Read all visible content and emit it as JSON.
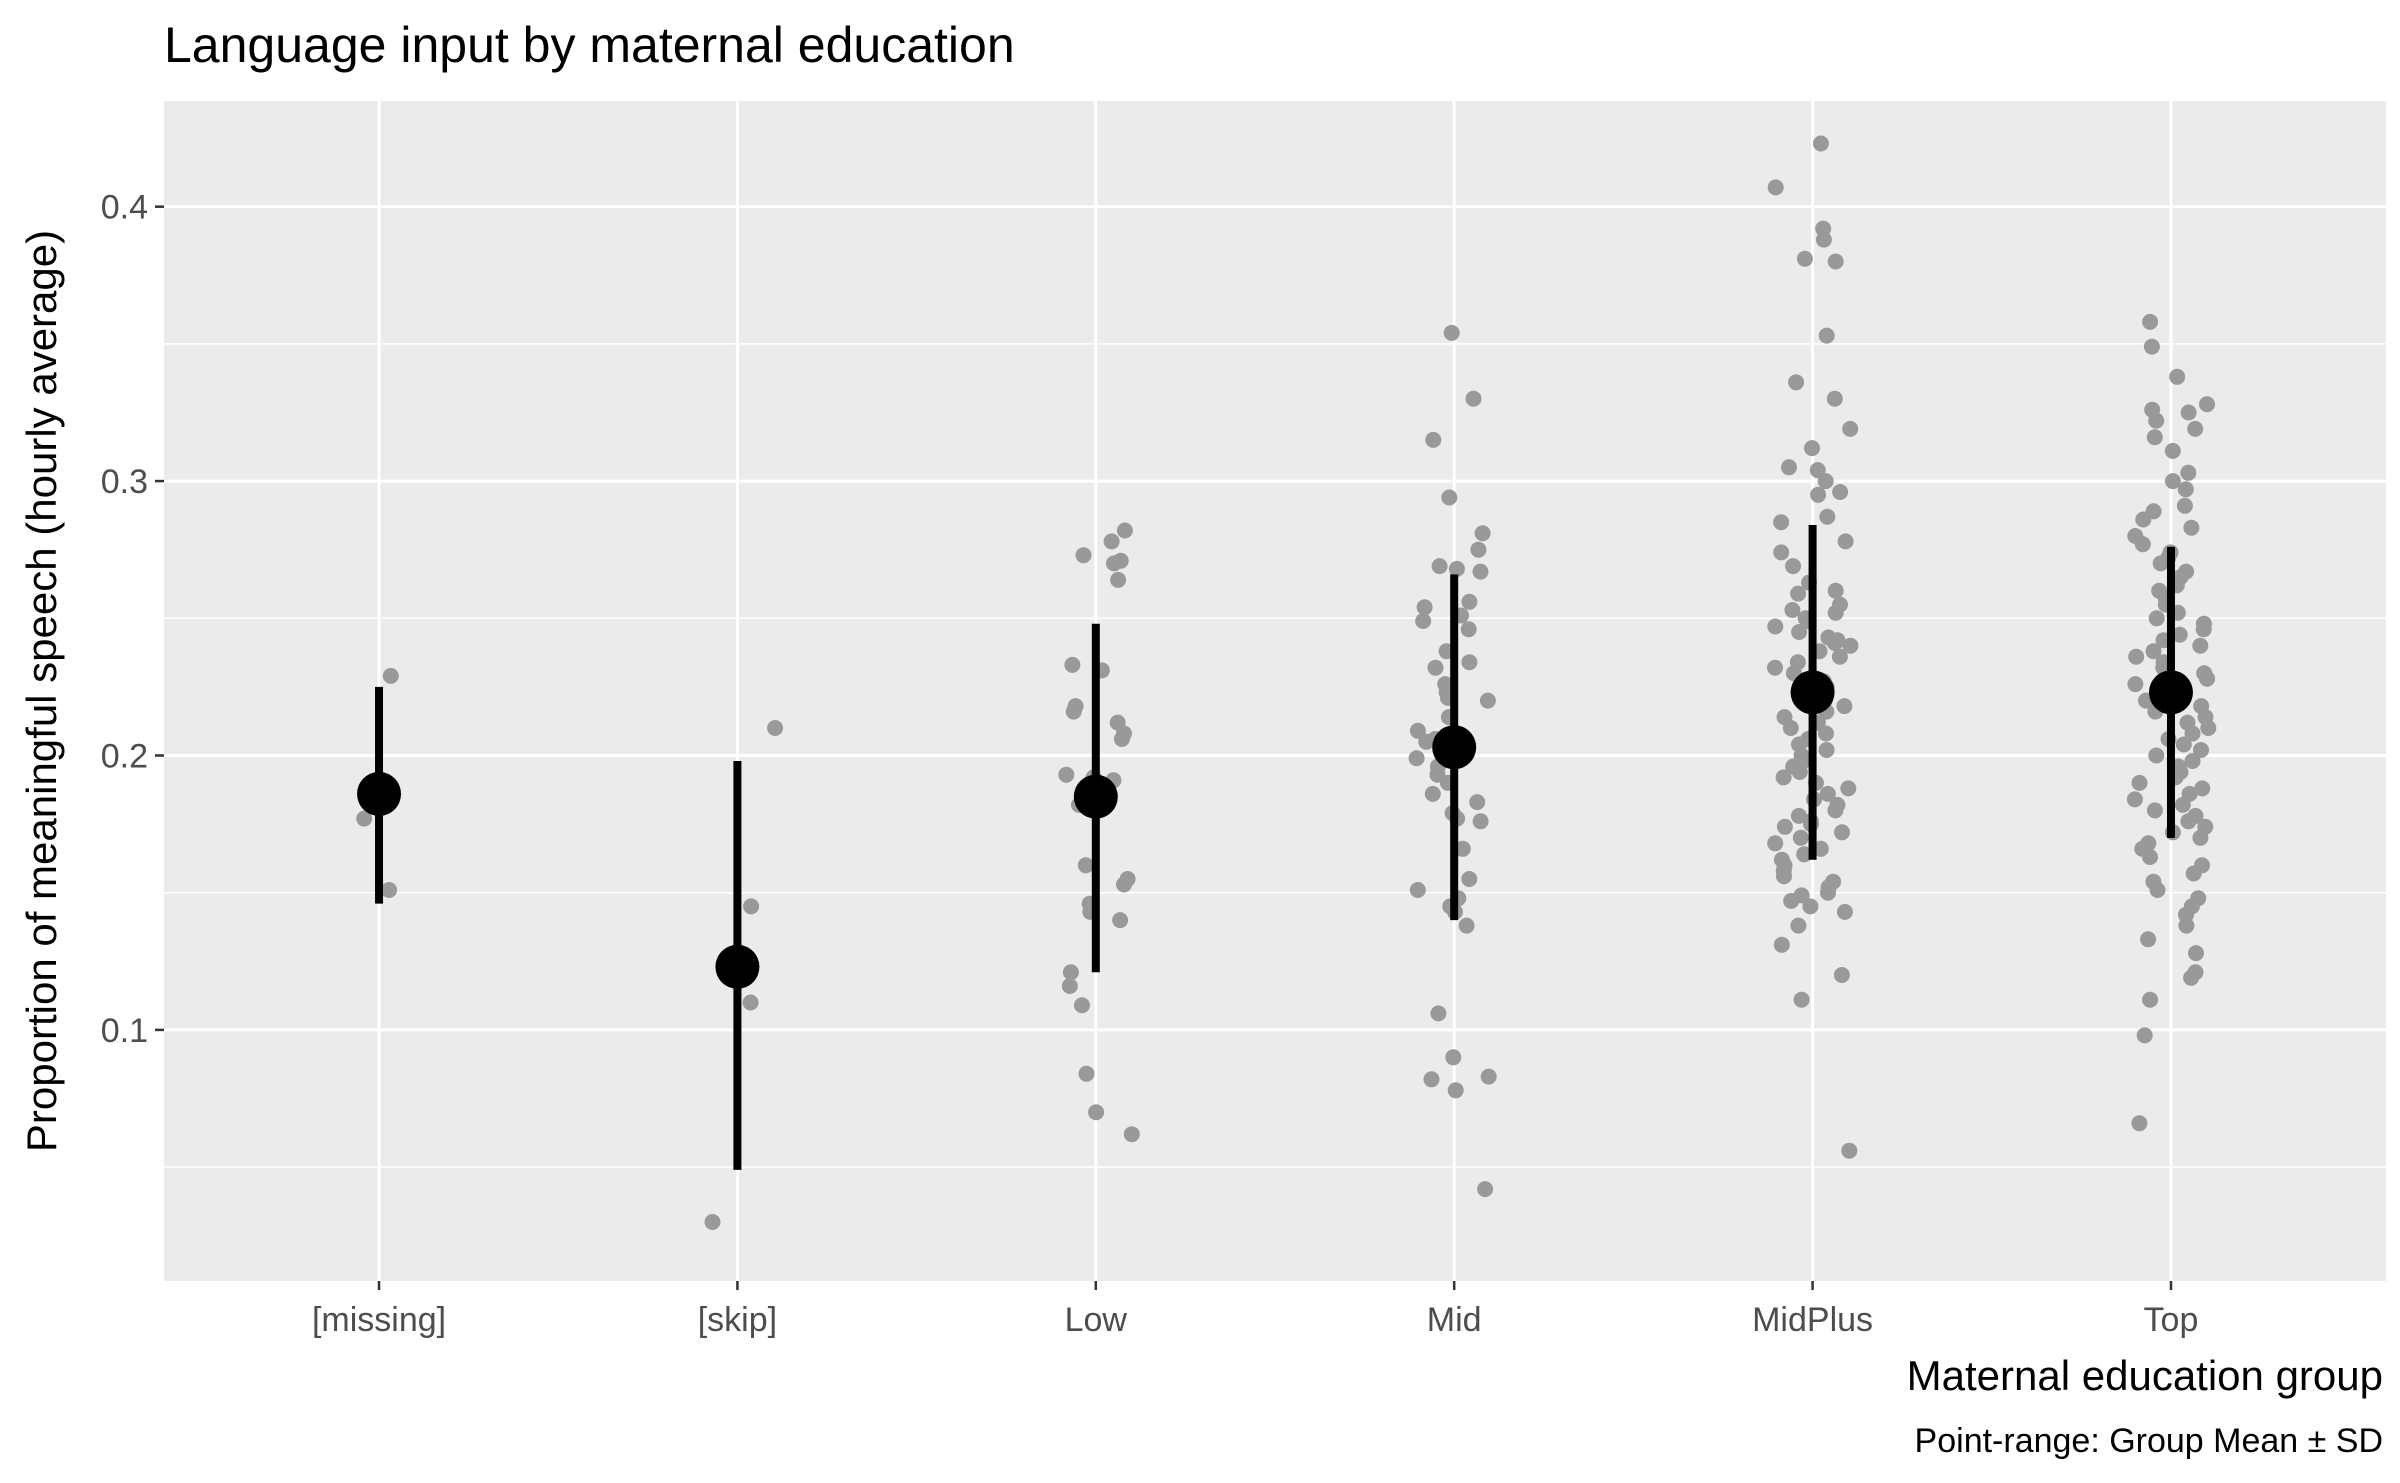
{
  "colors": {
    "panel": "#ebebeb",
    "grid_major": "#ffffff",
    "jitter_points": "#999999",
    "summary": "#000000"
  },
  "chart_data": {
    "type": "scatter",
    "title": "Language input by maternal education",
    "xlabel": "Maternal education group",
    "ylabel": "Proportion of meaningful speech (hourly average)",
    "caption": "Point-range: Group Mean ± SD",
    "categories": [
      "[missing]",
      "[skip]",
      "Low",
      "Mid",
      "MidPlus",
      "Top"
    ],
    "ylim": [
      0.0085,
      0.4385
    ],
    "yticks": [
      0.1,
      0.2,
      0.3,
      0.4
    ],
    "ytick_labels": [
      "0.1",
      "0.2",
      "0.3",
      "0.4"
    ],
    "grid": true,
    "summary": [
      {
        "category": "[missing]",
        "mean": 0.186,
        "ymin": 0.146,
        "ymax": 0.225
      },
      {
        "category": "[skip]",
        "mean": 0.123,
        "ymin": 0.049,
        "ymax": 0.198
      },
      {
        "category": "Low",
        "mean": 0.185,
        "ymin": 0.121,
        "ymax": 0.248
      },
      {
        "category": "Mid",
        "mean": 0.203,
        "ymin": 0.14,
        "ymax": 0.266
      },
      {
        "category": "MidPlus",
        "mean": 0.223,
        "ymin": 0.162,
        "ymax": 0.284
      },
      {
        "category": "Top",
        "mean": 0.223,
        "ymin": 0.17,
        "ymax": 0.276
      }
    ],
    "points": [
      {
        "category": "[missing]",
        "values": [
          0.229,
          0.177,
          0.151
        ]
      },
      {
        "category": "[skip]",
        "values": [
          0.21,
          0.145,
          0.11,
          0.03
        ]
      },
      {
        "category": "Low",
        "values": [
          0.282,
          0.278,
          0.271,
          0.27,
          0.273,
          0.264,
          0.233,
          0.231,
          0.218,
          0.216,
          0.212,
          0.208,
          0.206,
          0.193,
          0.192,
          0.191,
          0.183,
          0.182,
          0.16,
          0.155,
          0.153,
          0.146,
          0.143,
          0.14,
          0.121,
          0.116,
          0.109,
          0.084,
          0.07,
          0.062
        ]
      },
      {
        "category": "Mid",
        "values": [
          0.354,
          0.33,
          0.315,
          0.294,
          0.281,
          0.275,
          0.269,
          0.268,
          0.267,
          0.256,
          0.254,
          0.251,
          0.249,
          0.246,
          0.238,
          0.234,
          0.232,
          0.226,
          0.223,
          0.221,
          0.22,
          0.214,
          0.209,
          0.206,
          0.205,
          0.203,
          0.199,
          0.196,
          0.193,
          0.19,
          0.186,
          0.183,
          0.179,
          0.177,
          0.176,
          0.166,
          0.155,
          0.151,
          0.148,
          0.145,
          0.143,
          0.138,
          0.106,
          0.09,
          0.083,
          0.082,
          0.078,
          0.042
        ]
      },
      {
        "category": "MidPlus",
        "values": [
          0.423,
          0.407,
          0.392,
          0.388,
          0.381,
          0.38,
          0.353,
          0.336,
          0.33,
          0.319,
          0.312,
          0.305,
          0.304,
          0.3,
          0.296,
          0.295,
          0.287,
          0.285,
          0.278,
          0.274,
          0.269,
          0.263,
          0.26,
          0.259,
          0.255,
          0.253,
          0.252,
          0.25,
          0.249,
          0.247,
          0.245,
          0.243,
          0.242,
          0.241,
          0.24,
          0.238,
          0.236,
          0.234,
          0.232,
          0.23,
          0.228,
          0.227,
          0.225,
          0.223,
          0.222,
          0.22,
          0.218,
          0.216,
          0.214,
          0.212,
          0.21,
          0.208,
          0.206,
          0.204,
          0.202,
          0.2,
          0.198,
          0.196,
          0.194,
          0.192,
          0.19,
          0.188,
          0.186,
          0.184,
          0.182,
          0.18,
          0.178,
          0.176,
          0.175,
          0.174,
          0.172,
          0.17,
          0.168,
          0.166,
          0.164,
          0.162,
          0.16,
          0.158,
          0.156,
          0.154,
          0.152,
          0.15,
          0.149,
          0.147,
          0.145,
          0.143,
          0.138,
          0.131,
          0.12,
          0.111,
          0.056
        ]
      },
      {
        "category": "Top",
        "values": [
          0.358,
          0.349,
          0.338,
          0.328,
          0.326,
          0.325,
          0.322,
          0.319,
          0.316,
          0.311,
          0.303,
          0.3,
          0.297,
          0.291,
          0.289,
          0.286,
          0.283,
          0.28,
          0.277,
          0.274,
          0.272,
          0.27,
          0.267,
          0.265,
          0.262,
          0.26,
          0.257,
          0.255,
          0.252,
          0.25,
          0.248,
          0.246,
          0.244,
          0.242,
          0.24,
          0.238,
          0.236,
          0.234,
          0.232,
          0.23,
          0.228,
          0.226,
          0.224,
          0.222,
          0.22,
          0.218,
          0.216,
          0.214,
          0.212,
          0.21,
          0.208,
          0.206,
          0.204,
          0.202,
          0.2,
          0.198,
          0.196,
          0.194,
          0.192,
          0.19,
          0.188,
          0.186,
          0.184,
          0.182,
          0.18,
          0.178,
          0.176,
          0.174,
          0.172,
          0.17,
          0.168,
          0.166,
          0.163,
          0.16,
          0.157,
          0.154,
          0.151,
          0.148,
          0.145,
          0.142,
          0.138,
          0.133,
          0.128,
          0.121,
          0.119,
          0.111,
          0.098,
          0.066
        ]
      }
    ]
  }
}
